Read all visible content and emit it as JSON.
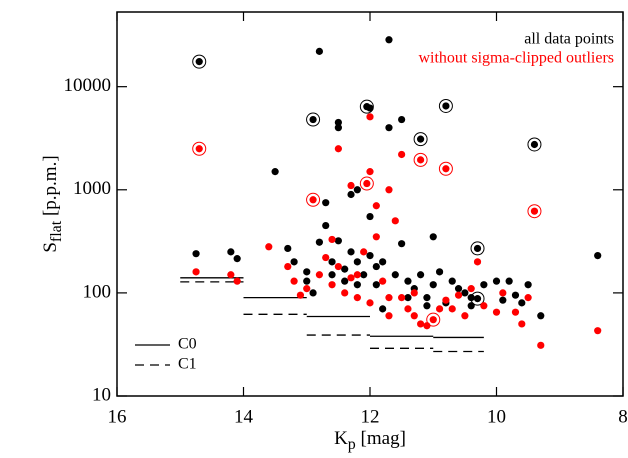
{
  "chart_data": {
    "type": "scatter",
    "xlabel": {
      "main": "K",
      "sub": "p",
      "rest": " [mag]"
    },
    "ylabel": {
      "main": "S",
      "sub": "flat",
      "rest": " [p.p.m.]"
    },
    "xlim": [
      16,
      8
    ],
    "xticks": [
      16,
      14,
      12,
      10,
      8
    ],
    "ylim": [
      10,
      53000
    ],
    "yticks": [
      10,
      100,
      1000,
      10000
    ],
    "ylog": true,
    "series": [
      {
        "name": "all data points",
        "color": "#000000",
        "circled": [
          0,
          8,
          23,
          37,
          43,
          58,
          49,
          50
        ],
        "x": [
          14.7,
          14.75,
          14.2,
          14.1,
          13.5,
          13.3,
          13.2,
          13.0,
          12.9,
          12.8,
          12.7,
          12.7,
          12.6,
          12.5,
          12.5,
          12.5,
          12.4,
          12.4,
          12.3,
          12.3,
          12.2,
          12.2,
          12.1,
          12.05,
          12.0,
          12.0,
          12.0,
          11.9,
          11.9,
          11.8,
          11.7,
          11.7,
          11.6,
          11.5,
          11.5,
          11.4,
          11.3,
          11.2,
          11.2,
          11.1,
          11.0,
          11.0,
          10.9,
          10.8,
          10.8,
          10.7,
          10.6,
          10.5,
          10.4,
          10.3,
          10.3,
          10.2,
          10.0,
          9.9,
          9.8,
          9.7,
          9.6,
          9.5,
          9.4,
          9.3,
          8.4,
          12.8,
          13.0,
          12.9,
          12.6,
          11.8,
          11.4,
          12.2,
          11.1,
          10.4
        ],
        "values": [
          17500,
          240,
          250,
          215,
          1500,
          270,
          200,
          130,
          4800,
          310,
          750,
          450,
          200,
          4500,
          4000,
          320,
          170,
          130,
          900,
          250,
          1000,
          200,
          150,
          6400,
          6200,
          550,
          230,
          180,
          120,
          200,
          28500,
          4000,
          150,
          4800,
          300,
          130,
          110,
          3100,
          150,
          90,
          350,
          120,
          160,
          6500,
          80,
          130,
          110,
          100,
          75,
          270,
          88,
          120,
          130,
          85,
          130,
          95,
          80,
          120,
          2750,
          60,
          230,
          22000,
          160,
          100,
          150,
          70,
          90,
          120,
          75,
          90
        ]
      },
      {
        "name": "without sigma-clipped outliers",
        "color": "#ff0000",
        "circled": [
          0,
          8,
          19,
          30,
          35,
          47,
          33
        ],
        "x": [
          14.7,
          14.75,
          14.2,
          14.1,
          13.6,
          13.3,
          13.2,
          13.0,
          12.9,
          12.8,
          12.7,
          12.6,
          12.5,
          12.5,
          12.4,
          12.3,
          12.3,
          12.2,
          12.1,
          12.05,
          12.0,
          12.0,
          11.9,
          11.8,
          11.7,
          11.6,
          11.5,
          11.5,
          11.4,
          11.3,
          11.2,
          11.2,
          11.1,
          11.0,
          10.9,
          10.8,
          10.8,
          10.7,
          10.5,
          10.4,
          10.3,
          10.2,
          10.0,
          9.9,
          9.7,
          9.6,
          9.5,
          9.4,
          9.3,
          8.4,
          13.1,
          12.6,
          11.9,
          11.7,
          12.2,
          11.3,
          10.6,
          12.0,
          11.7
        ],
        "values": [
          2500,
          160,
          150,
          130,
          280,
          180,
          130,
          110,
          800,
          150,
          220,
          120,
          2500,
          180,
          100,
          1100,
          140,
          90,
          250,
          1150,
          1500,
          80,
          700,
          130,
          60,
          500,
          2200,
          90,
          70,
          60,
          1950,
          50,
          48,
          55,
          70,
          1600,
          85,
          70,
          60,
          110,
          200,
          75,
          65,
          100,
          65,
          50,
          90,
          620,
          31,
          43,
          95,
          330,
          350,
          90,
          150,
          100,
          95,
          5100,
          1000
        ]
      }
    ],
    "lines": [
      {
        "name": "C0",
        "dash": "solid",
        "segments": [
          {
            "x": [
              15,
              14
            ],
            "value": 140
          },
          {
            "x": [
              14,
              13
            ],
            "value": 90
          },
          {
            "x": [
              13,
              12
            ],
            "value": 59
          },
          {
            "x": [
              12,
              11
            ],
            "value": 38
          },
          {
            "x": [
              11,
              10.2
            ],
            "value": 37
          }
        ]
      },
      {
        "name": "C1",
        "dash": "dashed",
        "segments": [
          {
            "x": [
              15,
              14
            ],
            "value": 128
          },
          {
            "x": [
              14,
              13
            ],
            "value": 62
          },
          {
            "x": [
              13,
              12
            ],
            "value": 39
          },
          {
            "x": [
              12,
              11
            ],
            "value": 29
          },
          {
            "x": [
              11,
              10.2
            ],
            "value": 27
          }
        ]
      }
    ]
  }
}
